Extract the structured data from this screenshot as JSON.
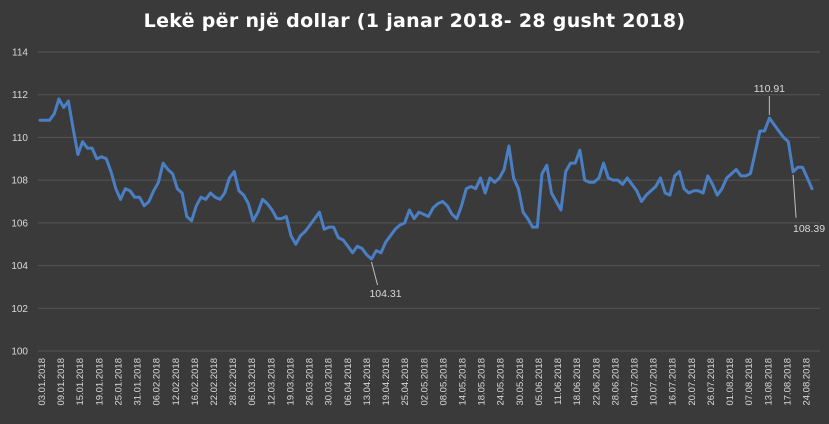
{
  "chart_data": {
    "type": "line",
    "title": "Lekë për një dollar (1 janar 2018- 28 gusht 2018)",
    "xlabel": "",
    "ylabel": "",
    "ylim": [
      100,
      114
    ],
    "yticks": [
      100,
      102,
      104,
      106,
      108,
      110,
      112,
      114
    ],
    "grid": true,
    "x_tick_labels": [
      "03.01.2018",
      "09.01.2018",
      "15.01.2018",
      "19.01.2018",
      "25.01.2018",
      "31.01.2018",
      "06.02.2018",
      "12.02.2018",
      "16.02.2018",
      "22.02.2018",
      "28.02.2018",
      "06.03.2018",
      "12.03.2018",
      "19.03.2018",
      "26.03.2018",
      "30.03.2018",
      "06.04.2018",
      "13.04.2018",
      "19.04.2018",
      "25.04.2018",
      "02.05.2018",
      "08.05.2018",
      "14.05.2018",
      "18.05.2018",
      "24.05.2018",
      "30.05.2018",
      "05.06.2018",
      "11.06.2018",
      "18.06.2018",
      "22.06.2018",
      "28.06.2018",
      "04.07.2018",
      "10.07.2018",
      "16.07.2018",
      "20.07.2018",
      "26.07.2018",
      "01.08.2018",
      "07.08.2018",
      "13.08.2018",
      "17.08.2018",
      "24.08.2018"
    ],
    "series": [
      {
        "color": "#4a7fc4",
        "values": [
          110.8,
          110.8,
          110.8,
          111.1,
          111.8,
          111.4,
          111.7,
          110.4,
          109.2,
          109.8,
          109.5,
          109.5,
          109.0,
          109.1,
          109.0,
          108.4,
          107.6,
          107.1,
          107.6,
          107.5,
          107.2,
          107.2,
          106.8,
          107.0,
          107.5,
          107.9,
          108.8,
          108.5,
          108.3,
          107.6,
          107.4,
          106.3,
          106.1,
          106.8,
          107.2,
          107.1,
          107.4,
          107.2,
          107.1,
          107.4,
          108.1,
          108.4,
          107.5,
          107.3,
          106.9,
          106.1,
          106.5,
          107.1,
          106.9,
          106.6,
          106.2,
          106.2,
          106.3,
          105.4,
          105.0,
          105.4,
          105.6,
          105.9,
          106.2,
          106.5,
          105.7,
          105.8,
          105.8,
          105.3,
          105.2,
          104.9,
          104.6,
          104.9,
          104.8,
          104.5,
          104.31,
          104.7,
          104.6,
          105.1,
          105.4,
          105.7,
          105.9,
          106.0,
          106.6,
          106.2,
          106.5,
          106.4,
          106.3,
          106.7,
          106.9,
          107.0,
          106.8,
          106.4,
          106.2,
          106.8,
          107.6,
          107.7,
          107.6,
          108.1,
          107.4,
          108.1,
          107.9,
          108.1,
          108.5,
          109.6,
          108.1,
          107.6,
          106.5,
          106.2,
          105.8,
          105.8,
          108.3,
          108.7,
          107.4,
          107.0,
          106.6,
          108.4,
          108.8,
          108.8,
          109.4,
          108.0,
          107.9,
          107.9,
          108.1,
          108.8,
          108.1,
          108.0,
          108.0,
          107.8,
          108.1,
          107.8,
          107.5,
          107.0,
          107.3,
          107.5,
          107.7,
          108.1,
          107.4,
          107.3,
          108.2,
          108.4,
          107.6,
          107.4,
          107.5,
          107.5,
          107.4,
          108.2,
          107.8,
          107.3,
          107.6,
          108.1,
          108.3,
          108.5,
          108.2,
          108.2,
          108.3,
          109.3,
          110.3,
          110.3,
          110.91,
          110.6,
          110.3,
          110.0,
          109.8,
          108.39,
          108.6,
          108.6,
          108.1,
          107.6
        ]
      }
    ],
    "annotations": [
      {
        "text": "110.91",
        "x_index": 154,
        "value": 110.91
      },
      {
        "text": "104.31",
        "x_index": 70,
        "value": 104.31
      },
      {
        "text": "108.39",
        "x_index": 159,
        "value": 108.39
      }
    ]
  }
}
